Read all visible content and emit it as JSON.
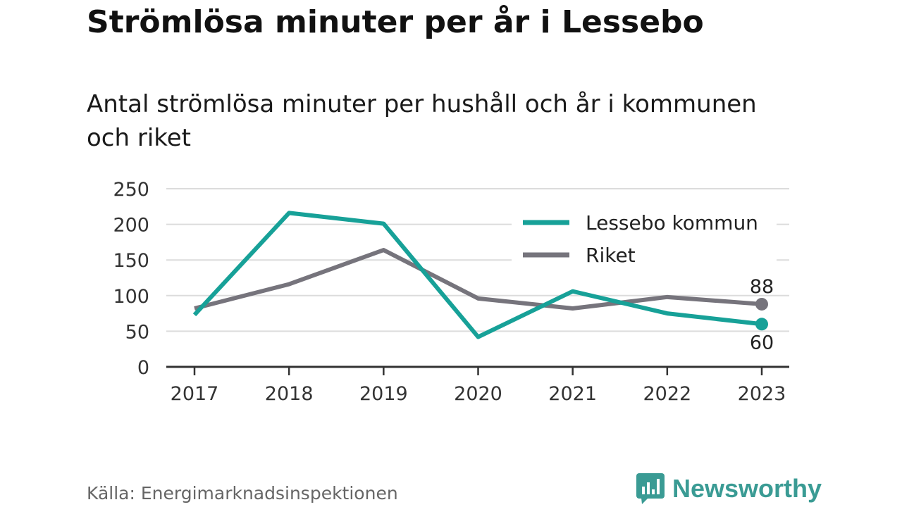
{
  "title": "Strömlösa minuter per år i Lessebo",
  "subtitle": "Antal strömlösa minuter per hushåll och år i kommunen och riket",
  "source": "Källa: Energimarknadsinspektionen",
  "brand": {
    "name": "Newsworthy",
    "icon": "newsworthy-logo-icon",
    "color": "#3a9b94"
  },
  "chart_data": {
    "type": "line",
    "title": "Strömlösa minuter per år i Lessebo",
    "subtitle": "Antal strömlösa minuter per hushåll och år i kommunen och riket",
    "x": [
      "2017",
      "2018",
      "2019",
      "2020",
      "2021",
      "2022",
      "2023"
    ],
    "yticks": [
      "0",
      "50",
      "100",
      "150",
      "200",
      "250"
    ],
    "ylim": [
      0,
      250
    ],
    "grid": true,
    "legend_position": "top-right",
    "series": [
      {
        "name": "Lessebo kommun",
        "color": "#17a198",
        "values": [
          73,
          216,
          201,
          42,
          106,
          75,
          60
        ],
        "end_label": "60"
      },
      {
        "name": "Riket",
        "color": "#76747c",
        "values": [
          82,
          116,
          164,
          96,
          82,
          98,
          88
        ],
        "end_label": "88"
      }
    ]
  }
}
